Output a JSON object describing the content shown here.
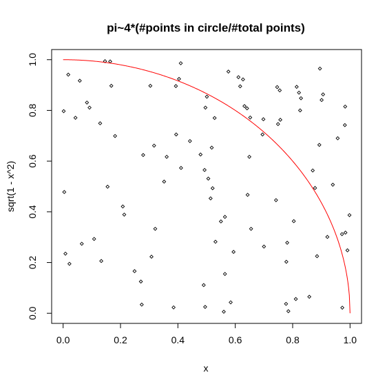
{
  "chart_data": {
    "type": "scatter",
    "title": "pi~4*(#points in circle/#total points)",
    "xlabel": "x",
    "ylabel": "sqrt(1 - x^2)",
    "xlim": [
      -0.04,
      1.04
    ],
    "ylim": [
      -0.04,
      1.04
    ],
    "xticks": [
      "0.0",
      "0.2",
      "0.4",
      "0.6",
      "0.8",
      "1.0"
    ],
    "yticks": [
      "0.0",
      "0.2",
      "0.4",
      "0.6",
      "0.8",
      "1.0"
    ],
    "grid": false,
    "curve": {
      "function": "sqrt(1 - x^2)",
      "color": "#ff0000",
      "x_range": [
        0,
        1
      ]
    },
    "point_color": "#000000",
    "points": [
      [
        0.002,
        0.797
      ],
      [
        0.004,
        0.478
      ],
      [
        0.008,
        0.235
      ],
      [
        0.018,
        0.941
      ],
      [
        0.022,
        0.195
      ],
      [
        0.043,
        0.771
      ],
      [
        0.058,
        0.917
      ],
      [
        0.065,
        0.274
      ],
      [
        0.083,
        0.831
      ],
      [
        0.092,
        0.811
      ],
      [
        0.108,
        0.293
      ],
      [
        0.129,
        0.749
      ],
      [
        0.133,
        0.206
      ],
      [
        0.146,
        0.994
      ],
      [
        0.155,
        0.499
      ],
      [
        0.164,
        0.993
      ],
      [
        0.168,
        0.897
      ],
      [
        0.181,
        0.699
      ],
      [
        0.208,
        0.421
      ],
      [
        0.213,
        0.389
      ],
      [
        0.249,
        0.166
      ],
      [
        0.271,
        0.125
      ],
      [
        0.274,
        0.034
      ],
      [
        0.279,
        0.624
      ],
      [
        0.304,
        0.897
      ],
      [
        0.308,
        0.223
      ],
      [
        0.317,
        0.661
      ],
      [
        0.321,
        0.333
      ],
      [
        0.352,
        0.519
      ],
      [
        0.361,
        0.617
      ],
      [
        0.385,
        0.023
      ],
      [
        0.393,
        0.896
      ],
      [
        0.394,
        0.705
      ],
      [
        0.404,
        0.924
      ],
      [
        0.41,
        0.986
      ],
      [
        0.411,
        0.573
      ],
      [
        0.442,
        0.679
      ],
      [
        0.479,
        0.626
      ],
      [
        0.49,
        0.111
      ],
      [
        0.493,
        0.565
      ],
      [
        0.495,
        0.025
      ],
      [
        0.496,
        0.811
      ],
      [
        0.501,
        0.854
      ],
      [
        0.506,
        0.531
      ],
      [
        0.514,
        0.453
      ],
      [
        0.518,
        0.653
      ],
      [
        0.521,
        0.493
      ],
      [
        0.528,
        0.77
      ],
      [
        0.531,
        0.282
      ],
      [
        0.55,
        0.362
      ],
      [
        0.56,
        0.006
      ],
      [
        0.564,
        0.155
      ],
      [
        0.564,
        0.38
      ],
      [
        0.576,
        0.953
      ],
      [
        0.584,
        0.043
      ],
      [
        0.594,
        0.242
      ],
      [
        0.611,
        0.931
      ],
      [
        0.617,
        0.895
      ],
      [
        0.627,
        0.922
      ],
      [
        0.632,
        0.817
      ],
      [
        0.641,
        0.808
      ],
      [
        0.643,
        0.467
      ],
      [
        0.649,
        0.617
      ],
      [
        0.652,
        0.772
      ],
      [
        0.655,
        0.333
      ],
      [
        0.695,
        0.705
      ],
      [
        0.698,
        0.765
      ],
      [
        0.7,
        0.263
      ],
      [
        0.742,
        0.446
      ],
      [
        0.746,
        0.892
      ],
      [
        0.749,
        0.746
      ],
      [
        0.755,
        0.879
      ],
      [
        0.757,
        0.763
      ],
      [
        0.777,
        0.037
      ],
      [
        0.778,
        0.203
      ],
      [
        0.781,
        0.278
      ],
      [
        0.785,
        0.008
      ],
      [
        0.804,
        0.363
      ],
      [
        0.811,
        0.056
      ],
      [
        0.814,
        0.893
      ],
      [
        0.822,
        0.87
      ],
      [
        0.826,
        0.8
      ],
      [
        0.829,
        0.848
      ],
      [
        0.858,
        0.065
      ],
      [
        0.87,
        0.563
      ],
      [
        0.878,
        0.494
      ],
      [
        0.885,
        0.225
      ],
      [
        0.893,
        0.664
      ],
      [
        0.895,
        0.965
      ],
      [
        0.901,
        0.841
      ],
      [
        0.906,
        0.863
      ],
      [
        0.921,
        0.301
      ],
      [
        0.94,
        0.507
      ],
      [
        0.957,
        0.69
      ],
      [
        0.972,
        0.312
      ],
      [
        0.973,
        0.022
      ],
      [
        0.982,
        0.742
      ],
      [
        0.983,
        0.815
      ],
      [
        0.984,
        0.318
      ],
      [
        0.991,
        0.248
      ],
      [
        0.998,
        0.387
      ]
    ]
  }
}
